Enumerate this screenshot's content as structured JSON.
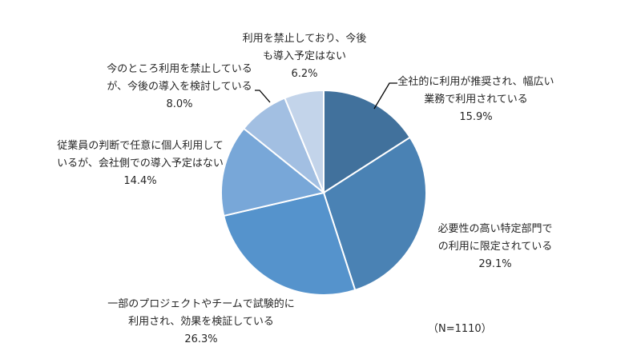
{
  "chart_data": {
    "type": "pie",
    "title": "",
    "note": "（N=1110）",
    "start_angle_deg": 0,
    "direction": "clockwise",
    "slices": [
      {
        "label": "全社的に利用が推奨され、幅広い業務で利用されている",
        "lines": [
          "全社的に利用が推奨され、幅広い",
          "業務で利用されている"
        ],
        "value": 15.9,
        "value_label": "15.9%",
        "color": "#41719c"
      },
      {
        "label": "必要性の高い特定部門での利用に限定されている",
        "lines": [
          "必要性の高い特定部門で",
          "の利用に限定されている"
        ],
        "value": 29.1,
        "value_label": "29.1%",
        "color": "#4a82b4"
      },
      {
        "label": "一部のプロジェクトやチームで試験的に利用され、効果を検証している",
        "lines": [
          "一部のプロジェクトやチームで試験的に",
          "利用され、効果を検証している"
        ],
        "value": 26.3,
        "value_label": "26.3%",
        "color": "#5593cc"
      },
      {
        "label": "従業員の判断で任意に個人利用しているが、会社側での導入予定はない",
        "lines": [
          "従業員の判断で任意に個人利用して",
          "いるが、会社側での導入予定はない"
        ],
        "value": 14.4,
        "value_label": "14.4%",
        "color": "#78a7d8"
      },
      {
        "label": "今のところ利用を禁止しているが、今後の導入を検討している",
        "lines": [
          "今のところ利用を禁止している",
          "が、今後の導入を検討している"
        ],
        "value": 8.0,
        "value_label": "8.0%",
        "color": "#a2bfe2"
      },
      {
        "label": "利用を禁止しており、今後も導入予定はない",
        "lines": [
          "利用を禁止しており、今後",
          "も導入予定はない"
        ],
        "value": 6.2,
        "value_label": "6.2%",
        "color": "#c3d4ea"
      }
    ],
    "legend": "none (data labels with category names)"
  }
}
